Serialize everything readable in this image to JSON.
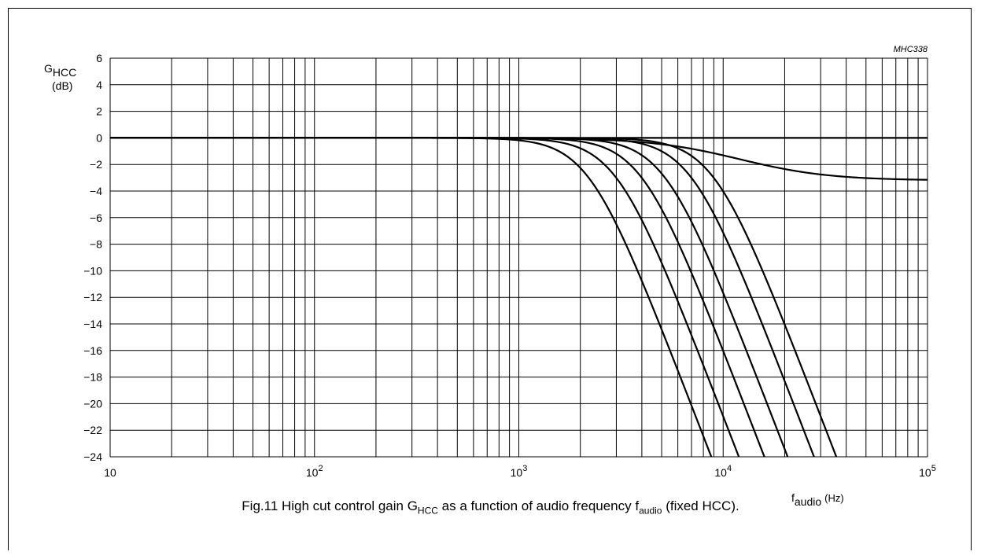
{
  "figure_id": "MHC338",
  "caption": {
    "prefix": "Fig.11  High cut control gain G",
    "sub1": "HCC",
    "middle": " as a function of audio frequency f",
    "sub2": "audio",
    "suffix": " (fixed HCC)."
  },
  "chart_data": {
    "type": "line",
    "title": "",
    "ylabel": {
      "main": "G",
      "sub": "HCC",
      "unit": "(dB)"
    },
    "xlabel": {
      "main": "f",
      "sub": "audio",
      "unit": "(Hz)"
    },
    "x_scale": "log",
    "xlim": [
      10,
      100000
    ],
    "ylim": [
      -24,
      6
    ],
    "y_ticks": [
      6,
      4,
      2,
      0,
      -2,
      -4,
      -6,
      -8,
      -10,
      -12,
      -14,
      -16,
      -18,
      -20,
      -22,
      -24
    ],
    "y_tick_labels": [
      "6",
      "4",
      "2",
      "0",
      "−2",
      "−4",
      "−6",
      "−8",
      "−10",
      "−12",
      "−14",
      "−16",
      "−18",
      "−20",
      "−22",
      "−24"
    ],
    "x_tick_labels": [
      {
        "value": 10,
        "base": "10",
        "exp": ""
      },
      {
        "value": 100,
        "base": "10",
        "exp": "2"
      },
      {
        "value": 1000,
        "base": "10",
        "exp": "3"
      },
      {
        "value": 10000,
        "base": "10",
        "exp": "4"
      },
      {
        "value": 100000,
        "base": "10",
        "exp": "5"
      }
    ],
    "grid": true,
    "series": [
      {
        "type": "flat",
        "gain_db": 0
      },
      {
        "type": "shelf",
        "fc": 10000,
        "floor_db": -3.2
      },
      {
        "type": "lowpass2",
        "fc": 9000
      },
      {
        "type": "lowpass2",
        "fc": 7000
      },
      {
        "type": "lowpass2",
        "fc": 5200
      },
      {
        "type": "lowpass2",
        "fc": 4000
      },
      {
        "type": "lowpass2",
        "fc": 3000
      },
      {
        "type": "lowpass2",
        "fc": 2200
      }
    ]
  }
}
